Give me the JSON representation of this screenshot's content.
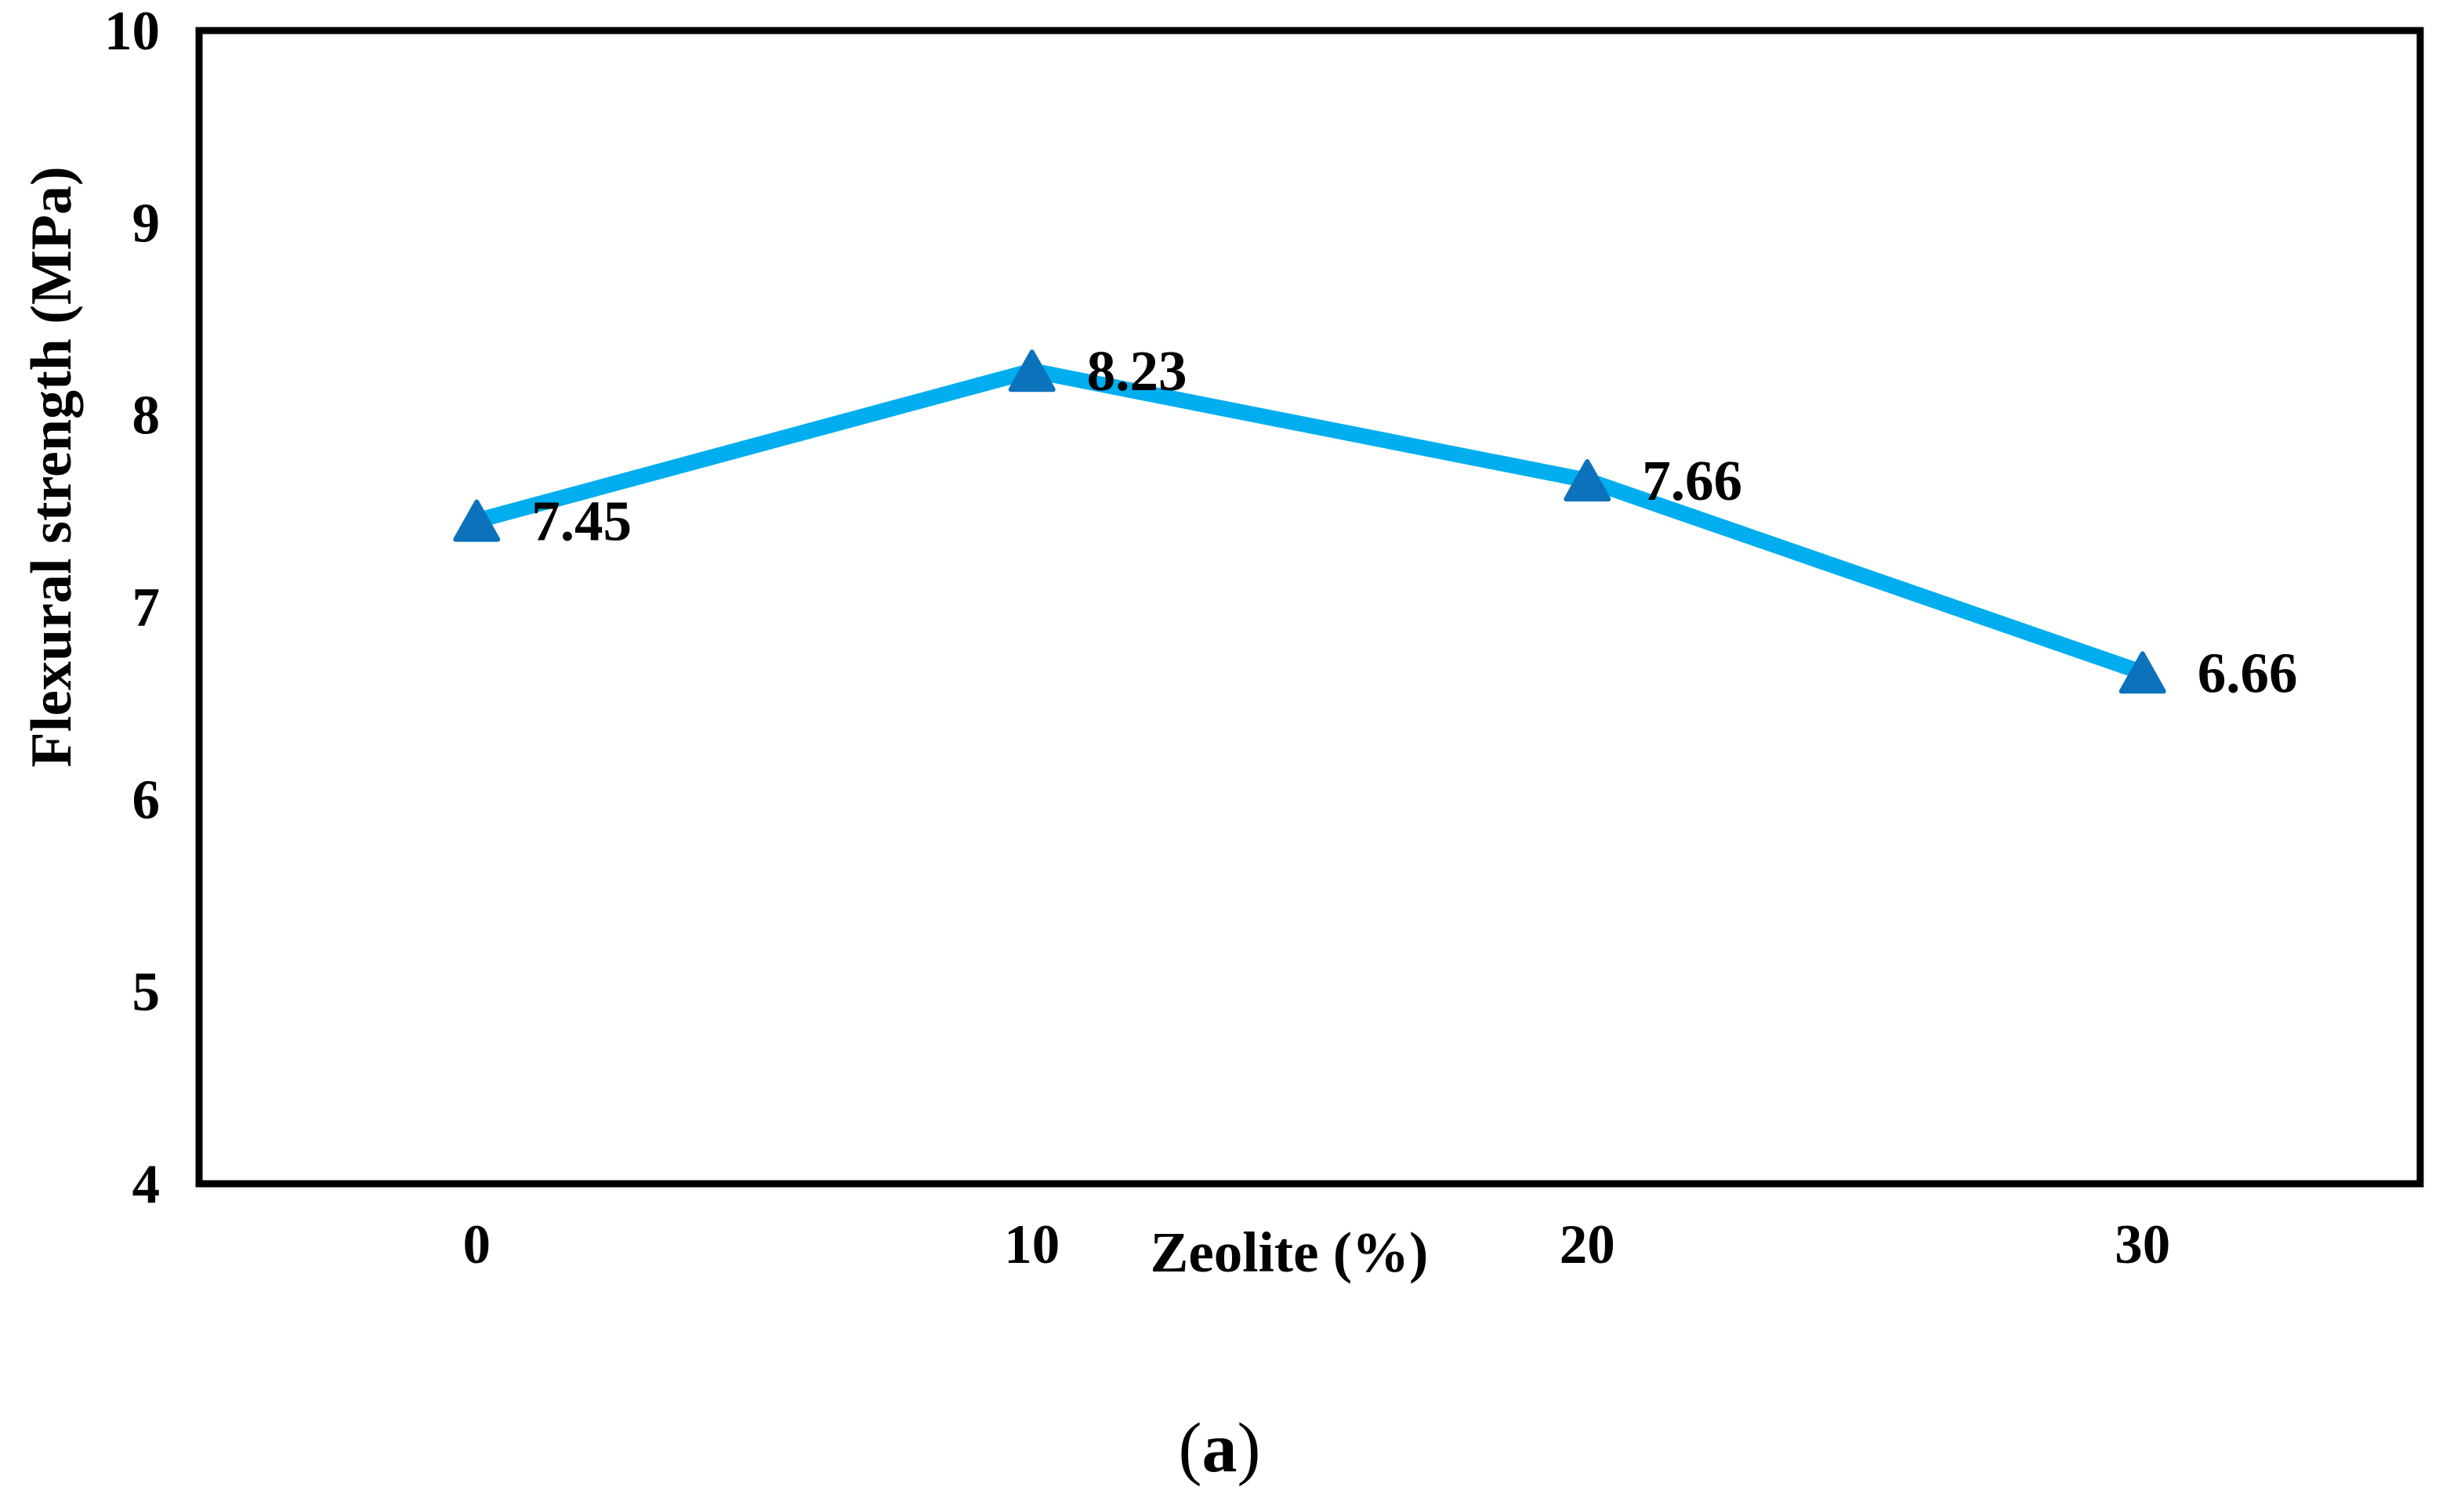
{
  "chart_data": {
    "type": "line",
    "title": "",
    "xlabel": "Zeolite (%)",
    "ylabel": "Flexural strength (MPa)",
    "categories": [
      "0",
      "10",
      "20",
      "30"
    ],
    "series": [
      {
        "name": "Flexural strength",
        "values": [
          7.45,
          8.23,
          7.66,
          6.66
        ]
      }
    ],
    "data_labels": [
      "7.45",
      "8.23",
      "7.66",
      "6.66"
    ],
    "ylim": [
      4,
      10
    ],
    "yticks": [
      "4",
      "5",
      "6",
      "7",
      "8",
      "9",
      "10"
    ],
    "grid": "off",
    "legend": "none",
    "line_color": "#00AEEF",
    "marker_color": "#0C72BC",
    "marker_shape": "triangle-up",
    "axis_color": "#000000"
  },
  "caption": {
    "open": "(",
    "letter": "a",
    "close": ")"
  }
}
